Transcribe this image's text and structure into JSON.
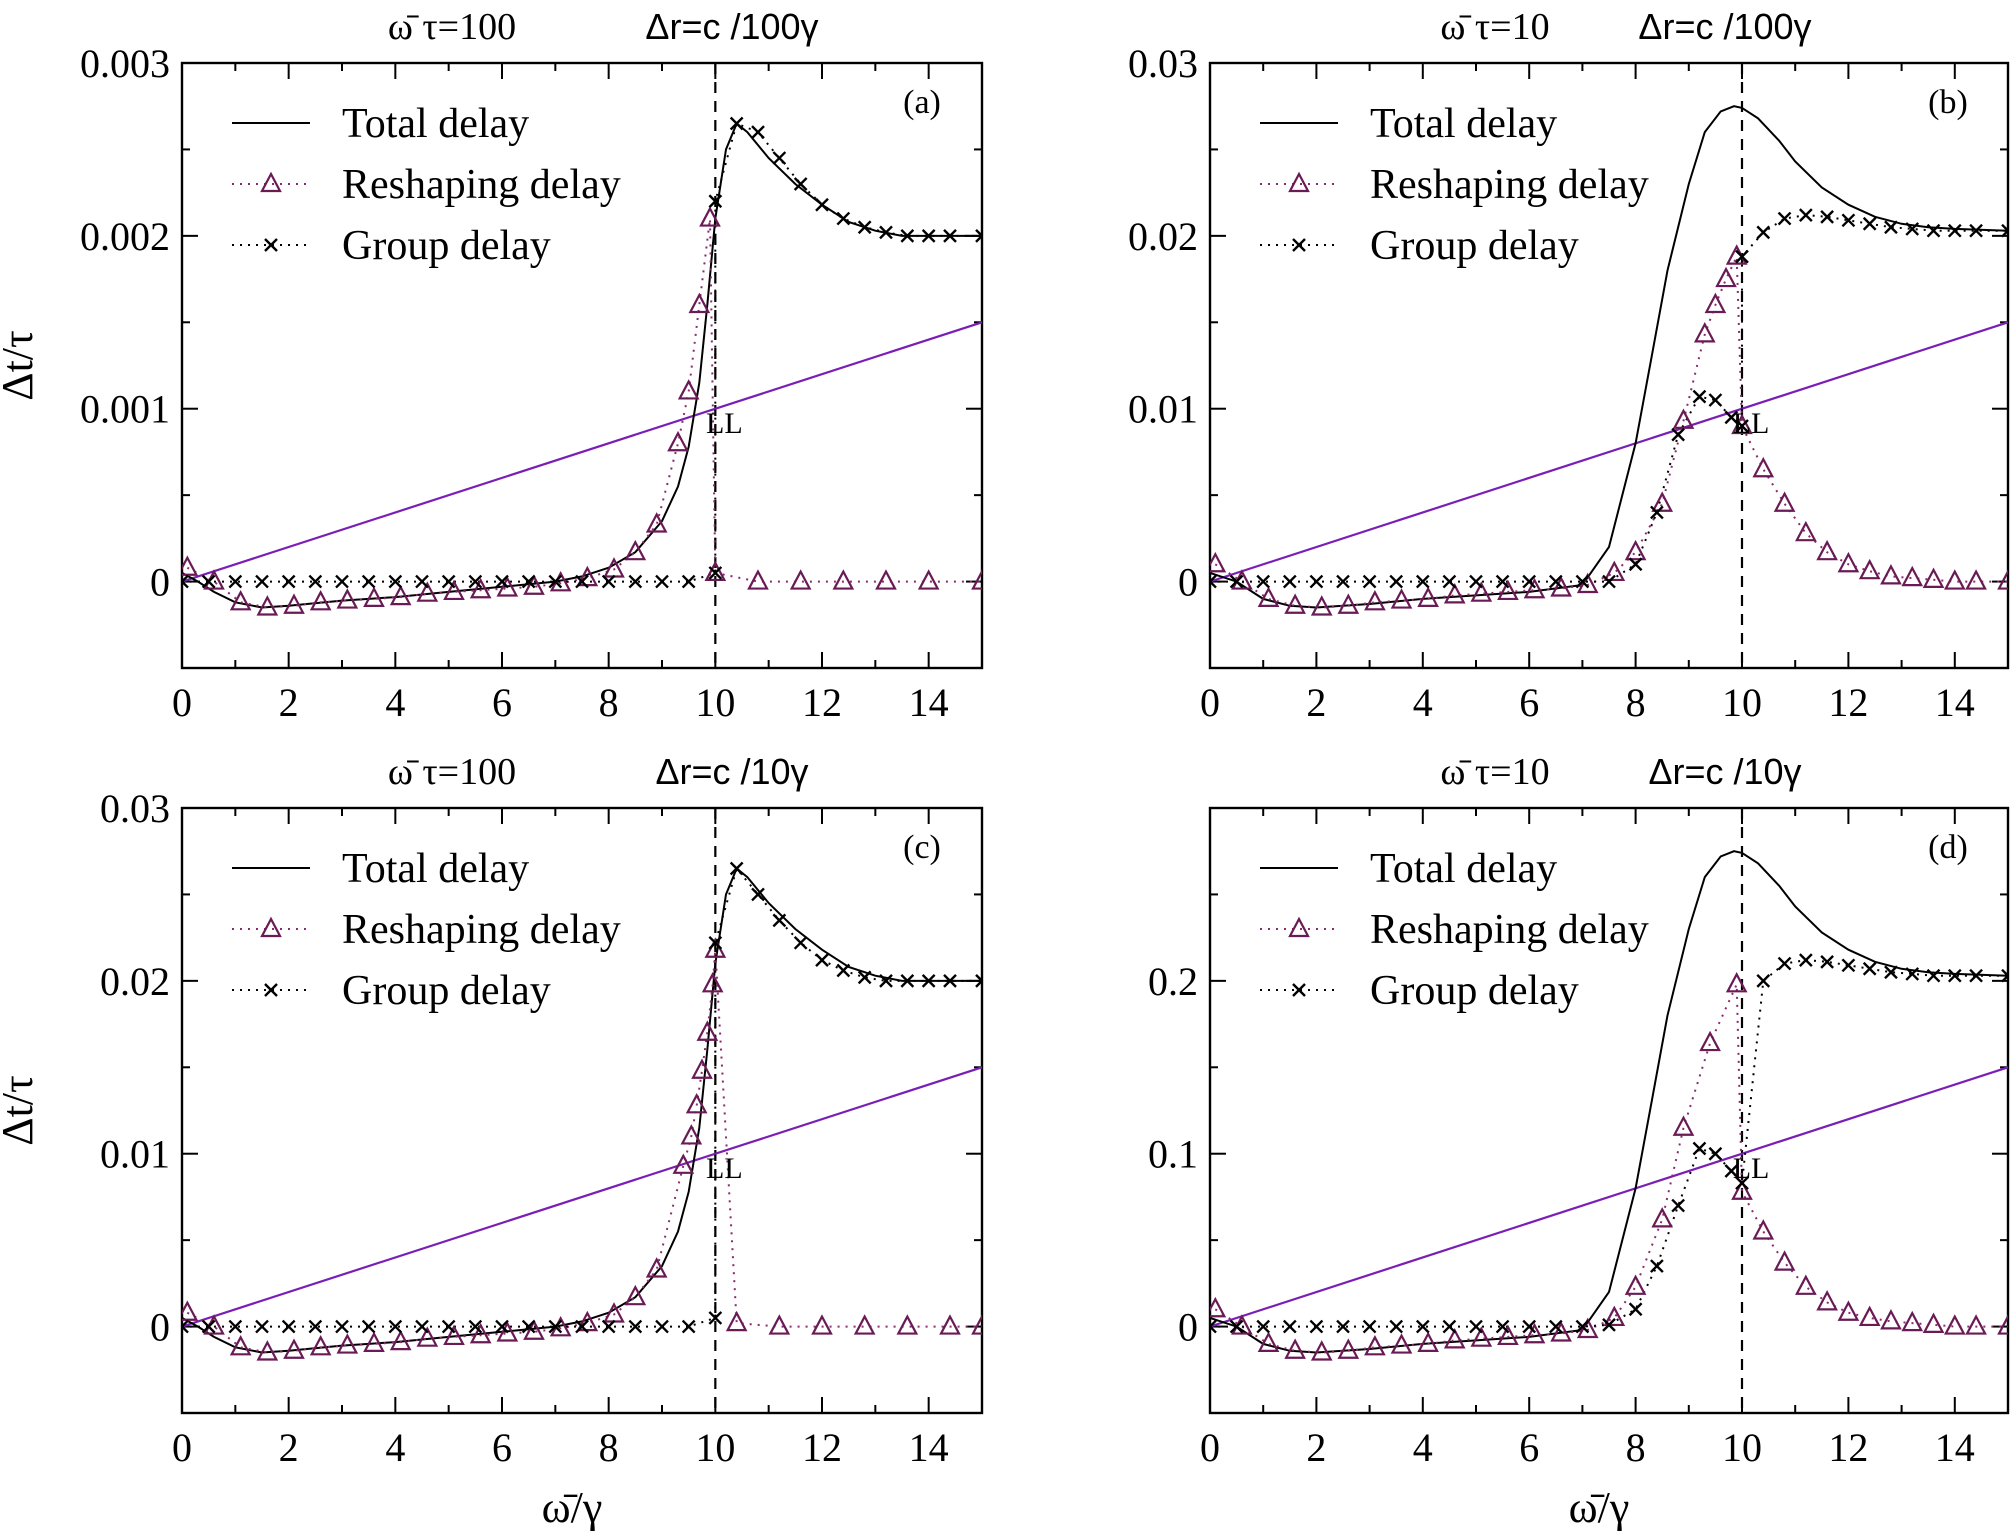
{
  "colors": {
    "reshaping": "#6a1b55",
    "reshaping_line": "#8a2a6e",
    "group": "#000000",
    "total": "#000000",
    "ll": "#7a1fb5"
  },
  "legend": {
    "total": "Total delay",
    "reshaping": "Reshaping delay",
    "group": "Group delay"
  },
  "chart_data": [
    {
      "type": "line",
      "panel": "(a)",
      "title_left": "ω̄ τ=100",
      "title_right": "Δr=c /100γ",
      "xlabel": "",
      "ylabel": "Δt/τ",
      "xlim": [
        0,
        15
      ],
      "ylim": [
        -0.0005,
        0.003
      ],
      "yticks": [
        0,
        0.001,
        0.002,
        0.003
      ],
      "ytick_labels": [
        "0",
        "0.001",
        "0.002",
        "0.003"
      ],
      "xticks": [
        0,
        2,
        4,
        6,
        8,
        10,
        12,
        14
      ],
      "xtick_labels": [
        "0",
        "2",
        "4",
        "6",
        "8",
        "10",
        "12",
        "14"
      ],
      "vline_x": 10,
      "annotation": "LL",
      "ll": {
        "x": [
          0,
          15
        ],
        "y": [
          0,
          0.0015
        ]
      },
      "total": {
        "x": [
          0,
          0.3,
          0.6,
          1,
          1.5,
          2,
          3,
          4,
          5,
          6,
          7,
          7.5,
          8,
          8.5,
          9,
          9.3,
          9.5,
          9.7,
          9.85,
          10,
          10.2,
          10.4,
          10.6,
          11,
          11.5,
          12,
          12.5,
          13,
          13.5,
          14,
          15
        ],
        "y": [
          5e-05,
          0.0,
          -6e-05,
          -0.00012,
          -0.00015,
          -0.00014,
          -0.00011,
          -9e-05,
          -6e-05,
          -3e-05,
          0.0,
          3e-05,
          8e-05,
          0.00017,
          0.00035,
          0.00055,
          0.00078,
          0.00115,
          0.0016,
          0.0021,
          0.0025,
          0.00265,
          0.0026,
          0.00245,
          0.0023,
          0.00218,
          0.00208,
          0.00203,
          0.002,
          0.002,
          0.002
        ]
      },
      "reshaping": {
        "x": [
          0.1,
          0.6,
          1.1,
          1.6,
          2.1,
          2.6,
          3.1,
          3.6,
          4.1,
          4.6,
          5.1,
          5.6,
          6.1,
          6.6,
          7.1,
          7.6,
          8.1,
          8.5,
          8.9,
          9.3,
          9.5,
          9.7,
          9.9,
          10.0,
          10.8,
          11.6,
          12.4,
          13.2,
          14.0,
          15.0
        ],
        "y": [
          8e-05,
          0.0,
          -0.00012,
          -0.00015,
          -0.00014,
          -0.00012,
          -0.00011,
          -0.0001,
          -9e-05,
          -7e-05,
          -6e-05,
          -5e-05,
          -4e-05,
          -3e-05,
          -1e-05,
          2e-05,
          7e-05,
          0.00017,
          0.00033,
          0.0008,
          0.0011,
          0.0016,
          0.0021,
          5e-05,
          0.0,
          0.0,
          0.0,
          0.0,
          0.0,
          0.0
        ]
      },
      "group": {
        "x": [
          0,
          0.5,
          1,
          1.5,
          2,
          2.5,
          3,
          3.5,
          4,
          4.5,
          5,
          5.5,
          6,
          6.5,
          7,
          7.5,
          8,
          8.5,
          9,
          9.5,
          10,
          10.0,
          10.4,
          10.8,
          11.2,
          11.6,
          12.0,
          12.4,
          12.8,
          13.2,
          13.6,
          14.0,
          14.4,
          15.0
        ],
        "y": [
          0,
          0,
          0,
          0,
          0,
          0,
          0,
          0,
          0,
          0,
          0,
          0,
          0,
          0,
          0,
          0,
          0,
          0,
          0,
          0,
          5e-05,
          0.0022,
          0.00265,
          0.0026,
          0.00245,
          0.0023,
          0.00218,
          0.0021,
          0.00205,
          0.00202,
          0.002,
          0.002,
          0.002,
          0.002
        ]
      }
    },
    {
      "type": "line",
      "panel": "(b)",
      "title_left": "ω̄ τ=10",
      "title_right": "Δr=c /100γ",
      "xlabel": "",
      "ylabel": "",
      "xlim": [
        0,
        15
      ],
      "ylim": [
        -0.005,
        0.03
      ],
      "yticks": [
        0,
        0.01,
        0.02,
        0.03
      ],
      "ytick_labels": [
        "0",
        "0.01",
        "0.02",
        "0.03"
      ],
      "xticks": [
        0,
        2,
        4,
        6,
        8,
        10,
        12,
        14
      ],
      "xtick_labels": [
        "0",
        "2",
        "4",
        "6",
        "8",
        "10",
        "12",
        "14"
      ],
      "vline_x": 10,
      "annotation": "LL",
      "ll": {
        "x": [
          0,
          15
        ],
        "y": [
          0,
          0.015
        ]
      },
      "total": {
        "x": [
          0,
          0.5,
          1,
          1.5,
          2,
          3,
          4,
          5,
          6,
          7,
          7.5,
          8,
          8.3,
          8.6,
          9,
          9.3,
          9.6,
          9.85,
          10,
          10.3,
          10.7,
          11,
          11.5,
          12,
          12.5,
          13,
          13.5,
          14,
          15
        ],
        "y": [
          0.0005,
          0.0,
          -0.001,
          -0.0014,
          -0.0015,
          -0.0013,
          -0.001,
          -0.0008,
          -0.0006,
          -0.0002,
          0.002,
          0.008,
          0.013,
          0.018,
          0.023,
          0.026,
          0.0272,
          0.0275,
          0.0274,
          0.0268,
          0.0255,
          0.0243,
          0.0228,
          0.0218,
          0.0211,
          0.0207,
          0.0205,
          0.0204,
          0.0203
        ]
      },
      "reshaping": {
        "x": [
          0.1,
          0.6,
          1.1,
          1.6,
          2.1,
          2.6,
          3.1,
          3.6,
          4.1,
          4.6,
          5.1,
          5.6,
          6.1,
          6.6,
          7.1,
          7.6,
          8.0,
          8.5,
          8.9,
          9.3,
          9.5,
          9.7,
          9.9,
          10.0,
          10.4,
          10.8,
          11.2,
          11.6,
          12.0,
          12.4,
          12.8,
          13.2,
          13.6,
          14.0,
          14.4,
          15.0
        ],
        "y": [
          0.001,
          0.0,
          -0.001,
          -0.0014,
          -0.0015,
          -0.0014,
          -0.0012,
          -0.0011,
          -0.001,
          -0.0008,
          -0.0007,
          -0.0006,
          -0.0005,
          -0.0004,
          -0.0002,
          0.0005,
          0.0017,
          0.0045,
          0.0093,
          0.0143,
          0.016,
          0.0175,
          0.0188,
          0.009,
          0.0065,
          0.0045,
          0.0028,
          0.0017,
          0.001,
          0.0006,
          0.0003,
          0.0002,
          0.0001,
          0.0,
          0.0,
          0.0
        ]
      },
      "group": {
        "x": [
          0,
          0.5,
          1,
          1.5,
          2,
          2.5,
          3,
          3.5,
          4,
          4.5,
          5,
          5.5,
          6,
          6.5,
          7,
          7.5,
          8,
          8.4,
          8.8,
          9.2,
          9.5,
          9.8,
          10.0,
          10.0,
          10.4,
          10.8,
          11.2,
          11.6,
          12.0,
          12.4,
          12.8,
          13.2,
          13.6,
          14.0,
          14.4,
          15.0
        ],
        "y": [
          0,
          0,
          0,
          0,
          0,
          0,
          0,
          0,
          0,
          0,
          0,
          0,
          0,
          0,
          0,
          0,
          0.001,
          0.004,
          0.0085,
          0.0107,
          0.0105,
          0.0095,
          0.009,
          0.0188,
          0.0202,
          0.021,
          0.0212,
          0.0211,
          0.0209,
          0.0207,
          0.0205,
          0.0204,
          0.0203,
          0.0203,
          0.0203,
          0.0203
        ]
      }
    },
    {
      "type": "line",
      "panel": "(c)",
      "title_left": "ω̄ τ=100",
      "title_right": "Δr=c /10γ",
      "xlabel": "",
      "ylabel": "Δt/τ",
      "xlim": [
        0,
        15
      ],
      "ylim": [
        -0.005,
        0.03
      ],
      "yticks": [
        0,
        0.01,
        0.02,
        0.03
      ],
      "ytick_labels": [
        "0",
        "0.01",
        "0.02",
        "0.03"
      ],
      "xticks": [
        0,
        2,
        4,
        6,
        8,
        10,
        12,
        14
      ],
      "xtick_labels": [
        "0",
        "2",
        "4",
        "6",
        "8",
        "10",
        "12",
        "14"
      ],
      "vline_x": 10,
      "annotation": "LL",
      "ll": {
        "x": [
          0,
          15
        ],
        "y": [
          0,
          0.015
        ]
      },
      "total": {
        "x": [
          0,
          0.3,
          0.6,
          1,
          1.5,
          2,
          3,
          4,
          5,
          6,
          7,
          7.5,
          8,
          8.5,
          9,
          9.3,
          9.5,
          9.7,
          9.85,
          10,
          10.2,
          10.4,
          10.6,
          11,
          11.5,
          12,
          12.5,
          13,
          13.5,
          14,
          15
        ],
        "y": [
          0.0005,
          0.0,
          -0.0006,
          -0.0012,
          -0.0015,
          -0.0014,
          -0.0011,
          -0.0009,
          -0.0006,
          -0.0003,
          0.0,
          0.0003,
          0.0008,
          0.0017,
          0.0035,
          0.0055,
          0.0078,
          0.0115,
          0.016,
          0.021,
          0.025,
          0.0265,
          0.026,
          0.0245,
          0.023,
          0.0218,
          0.0208,
          0.0203,
          0.02,
          0.02,
          0.02
        ]
      },
      "reshaping": {
        "x": [
          0.1,
          0.6,
          1.1,
          1.6,
          2.1,
          2.6,
          3.1,
          3.6,
          4.1,
          4.6,
          5.1,
          5.6,
          6.1,
          6.6,
          7.1,
          7.6,
          8.1,
          8.5,
          8.9,
          9.4,
          9.55,
          9.65,
          9.75,
          9.85,
          9.95,
          10.0,
          10.4,
          11.2,
          12.0,
          12.8,
          13.6,
          14.4,
          15.0
        ],
        "y": [
          0.0008,
          0.0,
          -0.0012,
          -0.0015,
          -0.0014,
          -0.0012,
          -0.0011,
          -0.001,
          -0.0009,
          -0.0007,
          -0.0006,
          -0.0005,
          -0.0004,
          -0.0003,
          -0.0001,
          0.0002,
          0.0007,
          0.0017,
          0.0033,
          0.0093,
          0.011,
          0.0128,
          0.0148,
          0.017,
          0.0198,
          0.0218,
          0.0002,
          0.0,
          0.0,
          0.0,
          0.0,
          0.0,
          0.0
        ]
      },
      "group": {
        "x": [
          0,
          0.5,
          1,
          1.5,
          2,
          2.5,
          3,
          3.5,
          4,
          4.5,
          5,
          5.5,
          6,
          6.5,
          7,
          7.5,
          8,
          8.5,
          9,
          9.5,
          10,
          10.0,
          10.4,
          10.8,
          11.2,
          11.6,
          12.0,
          12.4,
          12.8,
          13.2,
          13.6,
          14.0,
          14.4,
          15.0
        ],
        "y": [
          0,
          0,
          0,
          0,
          0,
          0,
          0,
          0,
          0,
          0,
          0,
          0,
          0,
          0,
          0,
          0,
          0,
          0,
          0,
          0,
          0.0005,
          0.0222,
          0.0265,
          0.025,
          0.0235,
          0.0222,
          0.0212,
          0.0206,
          0.0202,
          0.02,
          0.02,
          0.02,
          0.02,
          0.02
        ]
      }
    },
    {
      "type": "line",
      "panel": "(d)",
      "title_left": "ω̄ τ=10",
      "title_right": "Δr=c /10γ",
      "xlabel": "ω̄/γ",
      "ylabel": "",
      "xlim": [
        0,
        15
      ],
      "ylim": [
        -0.05,
        0.3
      ],
      "yticks": [
        0,
        0.1,
        0.2
      ],
      "ytick_labels": [
        "0",
        "0.1",
        "0.2"
      ],
      "xticks": [
        0,
        2,
        4,
        6,
        8,
        10,
        12,
        14
      ],
      "xtick_labels": [
        "0",
        "2",
        "4",
        "6",
        "8",
        "10",
        "12",
        "14"
      ],
      "vline_x": 10,
      "annotation": "LL",
      "ll": {
        "x": [
          0,
          15
        ],
        "y": [
          0,
          0.15
        ]
      },
      "total": {
        "x": [
          0,
          0.5,
          1,
          1.5,
          2,
          3,
          4,
          5,
          6,
          7,
          7.5,
          8,
          8.3,
          8.6,
          9,
          9.3,
          9.6,
          9.85,
          10,
          10.3,
          10.7,
          11,
          11.5,
          12,
          12.5,
          13,
          13.5,
          14,
          15
        ],
        "y": [
          0.005,
          0.0,
          -0.01,
          -0.014,
          -0.015,
          -0.013,
          -0.01,
          -0.008,
          -0.006,
          -0.002,
          0.02,
          0.08,
          0.13,
          0.18,
          0.23,
          0.26,
          0.272,
          0.275,
          0.274,
          0.268,
          0.255,
          0.243,
          0.228,
          0.218,
          0.211,
          0.207,
          0.205,
          0.204,
          0.203
        ]
      },
      "reshaping": {
        "x": [
          0.1,
          0.6,
          1.1,
          1.6,
          2.1,
          2.6,
          3.1,
          3.6,
          4.1,
          4.6,
          5.1,
          5.6,
          6.1,
          6.6,
          7.1,
          7.6,
          8.0,
          8.5,
          8.9,
          9.4,
          9.9,
          10.0,
          10.4,
          10.8,
          11.2,
          11.6,
          12.0,
          12.4,
          12.8,
          13.2,
          13.6,
          14.0,
          14.4,
          15.0
        ],
        "y": [
          0.01,
          0.0,
          -0.01,
          -0.014,
          -0.015,
          -0.014,
          -0.012,
          -0.011,
          -0.01,
          -0.008,
          -0.007,
          -0.006,
          -0.005,
          -0.004,
          -0.002,
          0.005,
          0.023,
          0.062,
          0.115,
          0.164,
          0.198,
          0.078,
          0.055,
          0.037,
          0.023,
          0.014,
          0.008,
          0.005,
          0.003,
          0.002,
          0.001,
          0.0,
          0.0,
          0.0
        ]
      },
      "group": {
        "x": [
          0,
          0.5,
          1,
          1.5,
          2,
          2.5,
          3,
          3.5,
          4,
          4.5,
          5,
          5.5,
          6,
          6.5,
          7,
          7.5,
          8,
          8.4,
          8.8,
          9.2,
          9.5,
          9.8,
          10.0,
          10.4,
          10.8,
          11.2,
          11.6,
          12.0,
          12.4,
          12.8,
          13.2,
          13.6,
          14.0,
          14.4,
          15.0
        ],
        "y": [
          0,
          0,
          0,
          0,
          0,
          0,
          0,
          0,
          0,
          0,
          0,
          0,
          0,
          0,
          0,
          0.001,
          0.01,
          0.035,
          0.07,
          0.103,
          0.1,
          0.09,
          0.083,
          0.2,
          0.21,
          0.212,
          0.211,
          0.209,
          0.207,
          0.205,
          0.204,
          0.203,
          0.203,
          0.203,
          0.203
        ]
      }
    }
  ]
}
